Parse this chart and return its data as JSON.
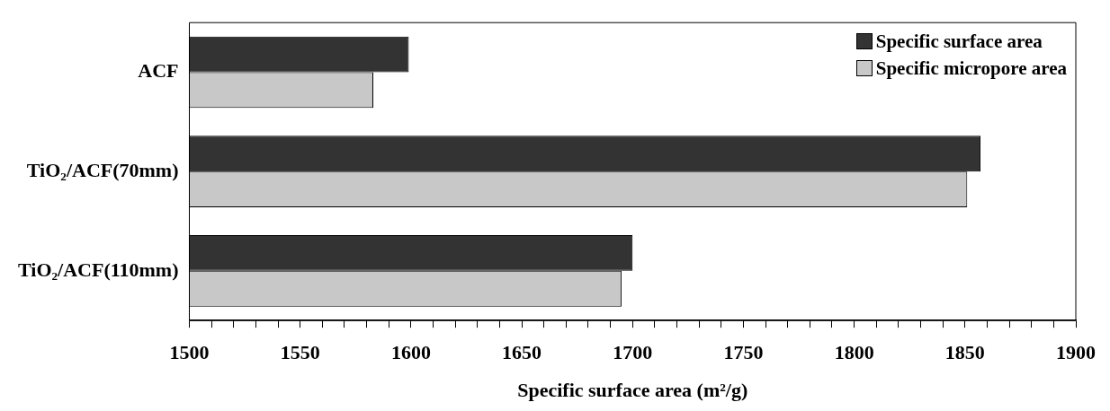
{
  "chart_data": {
    "type": "bar",
    "orientation": "horizontal",
    "xlabel": "Specific surface area (m²/g)",
    "categories": [
      "ACF",
      "TiO₂/ACF(70mm)",
      "TiO₂/ACF(110mm)"
    ],
    "series": [
      {
        "name": "Specific surface area",
        "color": "#333333",
        "values": [
          1599,
          1857,
          1700
        ]
      },
      {
        "name": "Specific micropore area",
        "color": "#c8c8c8",
        "values": [
          1583,
          1851,
          1695
        ]
      }
    ],
    "xlim": [
      1500,
      1900
    ],
    "xticks": [
      1500,
      {
        "value": 1510,
        "label": null
      },
      {
        "value": 1520,
        "label": null
      },
      {
        "value": 1530,
        "label": null
      },
      {
        "value": 1540,
        "label": null
      },
      1550,
      {
        "value": 1560,
        "label": null
      },
      {
        "value": 1570,
        "label": null
      },
      {
        "value": 1580,
        "label": null
      },
      {
        "value": 1590,
        "label": null
      },
      1600,
      {
        "value": 1610,
        "label": null
      },
      {
        "value": 1620,
        "label": null
      },
      {
        "value": 1630,
        "label": null
      },
      {
        "value": 1640,
        "label": null
      },
      1650,
      {
        "value": 1660,
        "label": null
      },
      {
        "value": 1670,
        "label": null
      },
      {
        "value": 1680,
        "label": null
      },
      {
        "value": 1690,
        "label": null
      },
      1700,
      {
        "value": 1710,
        "label": null
      },
      {
        "value": 1720,
        "label": null
      },
      {
        "value": 1730,
        "label": null
      },
      {
        "value": 1740,
        "label": null
      },
      1750,
      {
        "value": 1760,
        "label": null
      },
      {
        "value": 1770,
        "label": null
      },
      {
        "value": 1780,
        "label": null
      },
      {
        "value": 1790,
        "label": null
      },
      1800,
      {
        "value": 1810,
        "label": null
      },
      {
        "value": 1820,
        "label": null
      },
      {
        "value": 1830,
        "label": null
      },
      {
        "value": 1840,
        "label": null
      },
      1850,
      {
        "value": 1860,
        "label": null
      },
      {
        "value": 1870,
        "label": null
      },
      {
        "value": 1880,
        "label": null
      },
      {
        "value": 1890,
        "label": null
      },
      1900
    ],
    "grid": false,
    "legend": "top right"
  }
}
